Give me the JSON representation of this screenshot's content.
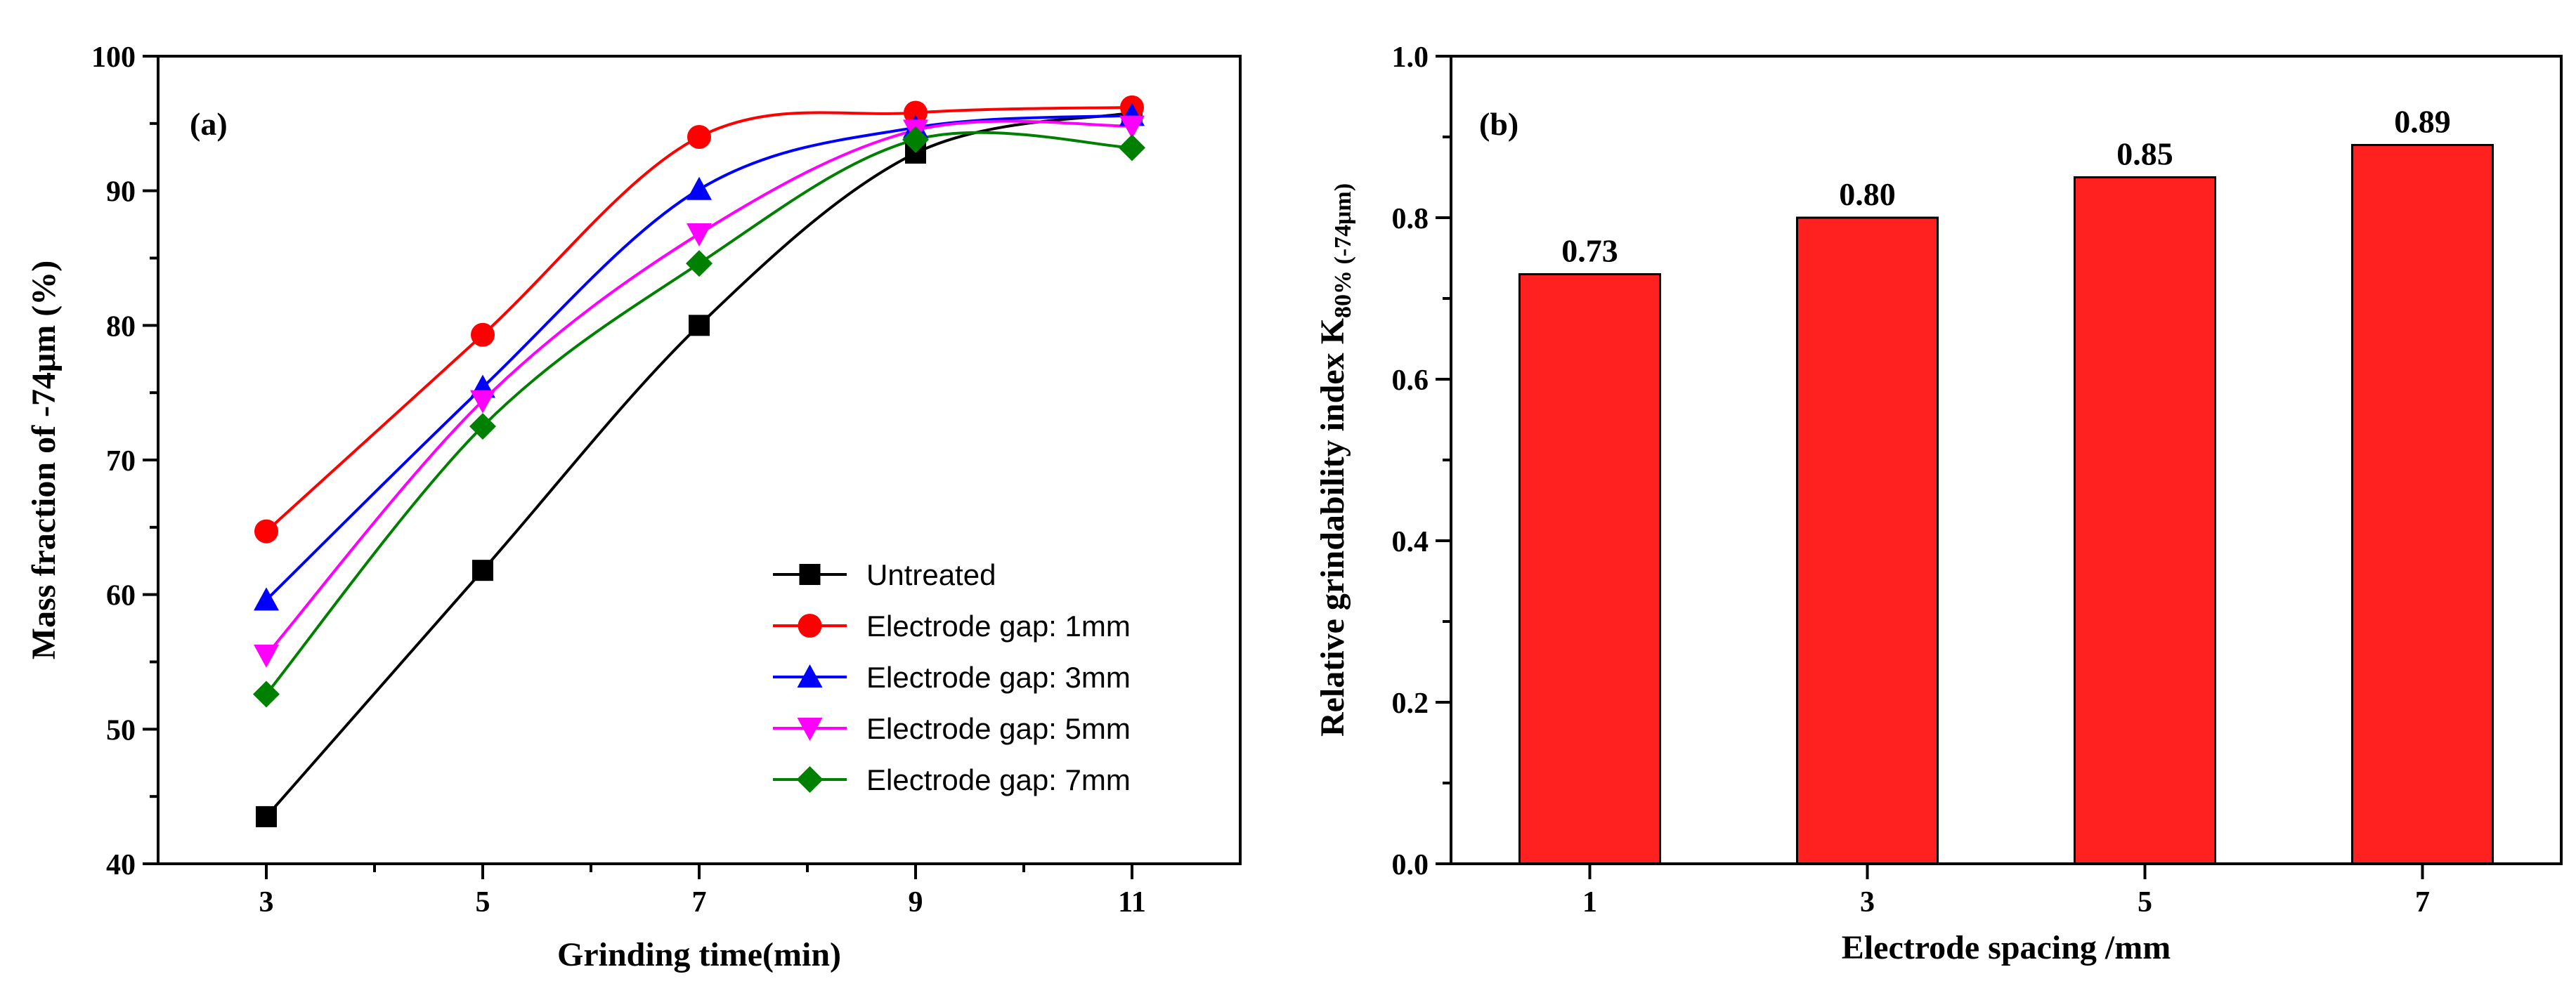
{
  "chart_data": [
    {
      "type": "line",
      "panel_label": "(a)",
      "xlabel": "Grinding time(min)",
      "ylabel": "Mass fraction of -74μm (%)",
      "xlim": [
        2,
        12
      ],
      "ylim": [
        40,
        100
      ],
      "xticks": [
        3,
        5,
        7,
        9,
        11
      ],
      "yticks": [
        40,
        50,
        60,
        70,
        80,
        90,
        100
      ],
      "x": [
        3,
        5,
        7,
        9,
        11
      ],
      "legend_position": "bottom-right",
      "series": [
        {
          "name": "Untreated",
          "color": "#000000",
          "marker": "square",
          "values": [
            43.5,
            61.8,
            80.0,
            92.8,
            95.8
          ]
        },
        {
          "name": "Electrode gap: 1mm",
          "color": "#ff0000",
          "marker": "circle",
          "values": [
            64.7,
            79.3,
            94.0,
            95.8,
            96.2
          ]
        },
        {
          "name": "Electrode gap: 3mm",
          "color": "#0000ff",
          "marker": "triangle-up",
          "values": [
            59.6,
            75.4,
            90.1,
            94.7,
            95.6
          ]
        },
        {
          "name": "Electrode gap: 5mm",
          "color": "#ff00ff",
          "marker": "triangle-down",
          "values": [
            55.5,
            74.4,
            86.8,
            94.5,
            94.8
          ]
        },
        {
          "name": "Electrode gap: 7mm",
          "color": "#008000",
          "marker": "diamond",
          "values": [
            52.6,
            72.5,
            84.6,
            93.8,
            93.2
          ]
        }
      ]
    },
    {
      "type": "bar",
      "panel_label": "(b)",
      "xlabel": "Electrode spacing /mm",
      "ylabel_main": "Relative grindability index K",
      "ylabel_sub": "80% (-74μm)",
      "categories": [
        "1",
        "3",
        "5",
        "7"
      ],
      "values": [
        0.73,
        0.8,
        0.85,
        0.89
      ],
      "data_labels": [
        "0.73",
        "0.80",
        "0.85",
        "0.89"
      ],
      "ylim": [
        0,
        1.0
      ],
      "yticks": [
        "0.0",
        "0.2",
        "0.4",
        "0.6",
        "0.8",
        "1.0"
      ],
      "bar_color": "#ff2020"
    }
  ]
}
